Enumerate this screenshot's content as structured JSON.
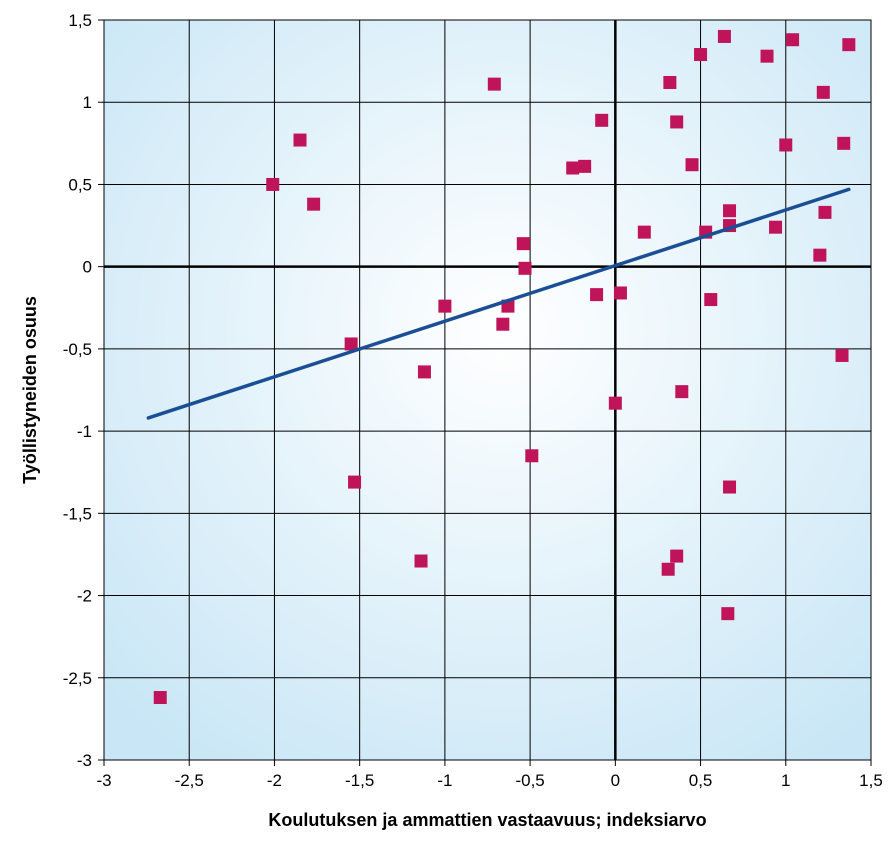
{
  "chart_data": {
    "type": "scatter",
    "title": "",
    "xlabel": "Koulutuksen ja ammattien vastaavuus; indeksiarvo",
    "ylabel": "Työllistyneiden osuus",
    "xlim": [
      -3,
      1.5
    ],
    "ylim": [
      -3,
      1.5
    ],
    "x_ticks": [
      -3,
      -2.5,
      -2,
      -1.5,
      -1,
      -0.5,
      0,
      0.5,
      1,
      1.5
    ],
    "y_ticks": [
      -3,
      -2.5,
      -2,
      -1.5,
      -1,
      -0.5,
      0,
      0.5,
      1,
      1.5
    ],
    "x_tick_labels": [
      "-3",
      "-2,5",
      "-2",
      "-1,5",
      "-1",
      "-0,5",
      "0",
      "0,5",
      "1",
      "1,5"
    ],
    "y_tick_labels": [
      "-3",
      "-2,5",
      "-2",
      "-1,5",
      "-1",
      "-0,5",
      "0",
      "0,5",
      "1",
      "1,5"
    ],
    "grid": true,
    "legend": "none",
    "colors": {
      "marker": "#c0145a",
      "trendline": "#1a4f96",
      "background_center": "#ffffff",
      "background_edge": "#c8e6f6",
      "grid": "#000000"
    },
    "series": [
      {
        "points": [
          [
            -2.67,
            -2.62
          ],
          [
            -2.01,
            0.5
          ],
          [
            -1.85,
            0.77
          ],
          [
            -1.77,
            0.38
          ],
          [
            -1.55,
            -0.47
          ],
          [
            -1.53,
            -1.31
          ],
          [
            -1.14,
            -1.79
          ],
          [
            -1.12,
            -0.64
          ],
          [
            -1.0,
            -0.24
          ],
          [
            -0.71,
            1.11
          ],
          [
            -0.66,
            -0.35
          ],
          [
            -0.63,
            -0.24
          ],
          [
            -0.54,
            0.14
          ],
          [
            -0.53,
            -0.01
          ],
          [
            -0.49,
            -1.15
          ],
          [
            -0.25,
            0.6
          ],
          [
            -0.18,
            0.61
          ],
          [
            -0.11,
            -0.17
          ],
          [
            -0.08,
            0.89
          ],
          [
            0.0,
            -0.83
          ],
          [
            0.03,
            -0.16
          ],
          [
            0.17,
            0.21
          ],
          [
            0.31,
            -1.84
          ],
          [
            0.32,
            1.12
          ],
          [
            0.36,
            0.88
          ],
          [
            0.36,
            -1.76
          ],
          [
            0.39,
            -0.76
          ],
          [
            0.45,
            0.62
          ],
          [
            0.5,
            1.29
          ],
          [
            0.53,
            0.21
          ],
          [
            0.56,
            -0.2
          ],
          [
            0.64,
            1.4
          ],
          [
            0.66,
            -2.11
          ],
          [
            0.67,
            0.34
          ],
          [
            0.67,
            0.25
          ],
          [
            0.67,
            -1.34
          ],
          [
            0.89,
            1.28
          ],
          [
            0.94,
            0.24
          ],
          [
            1.0,
            0.74
          ],
          [
            1.04,
            1.38
          ],
          [
            1.2,
            0.07
          ],
          [
            1.22,
            1.06
          ],
          [
            1.23,
            0.33
          ],
          [
            1.33,
            -0.54
          ],
          [
            1.34,
            0.75
          ],
          [
            1.37,
            1.35
          ]
        ]
      }
    ],
    "trendline": {
      "x": [
        -2.74,
        1.37
      ],
      "y": [
        -0.92,
        0.47
      ]
    }
  }
}
